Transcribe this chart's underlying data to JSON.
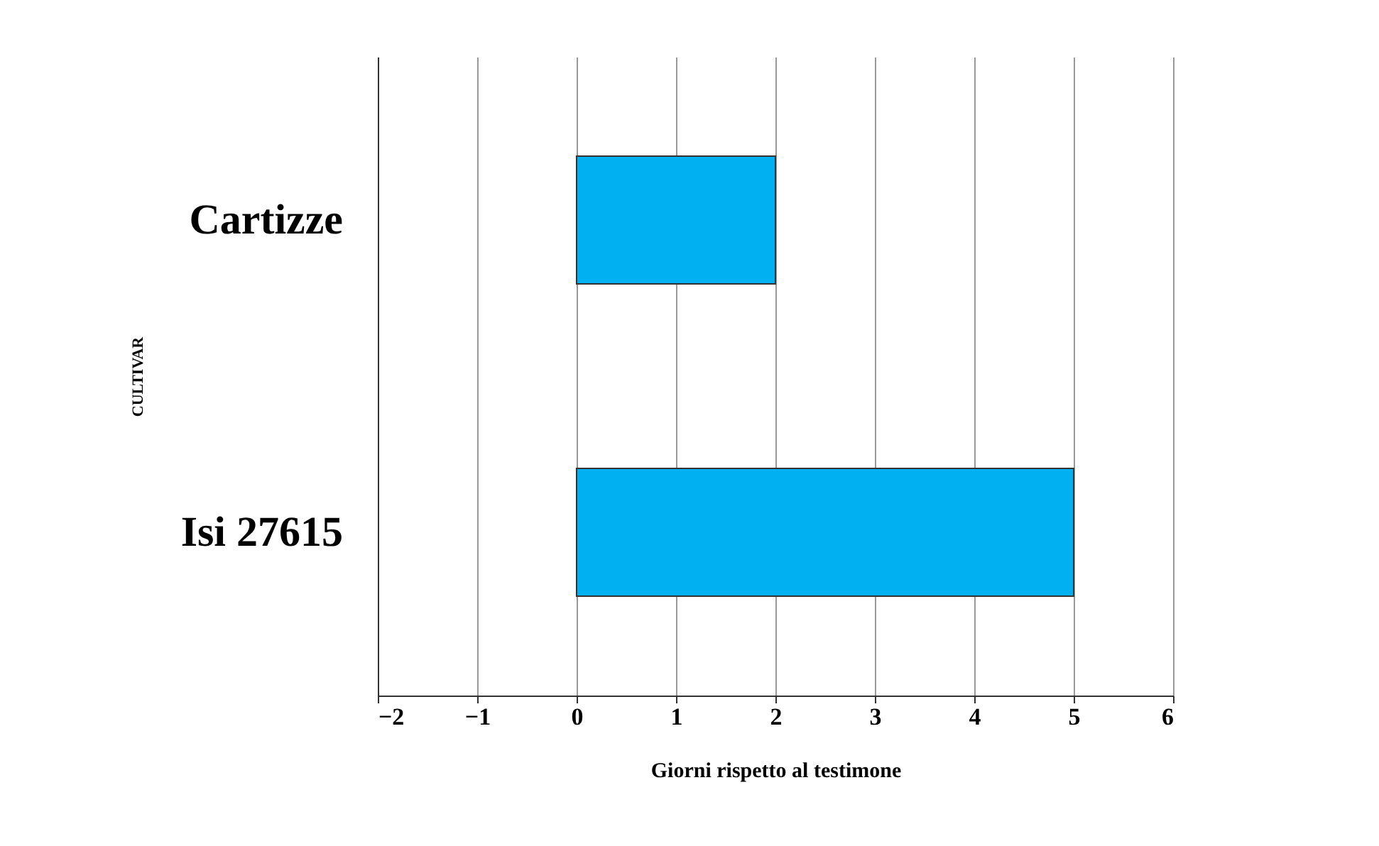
{
  "chart_data": {
    "type": "bar",
    "orientation": "horizontal",
    "xlabel": "Giorni rispetto al testimone",
    "ylabel": "CULTIVAR",
    "categories": [
      "Cartizze",
      "Isi 27615"
    ],
    "series": [
      {
        "color": "#00b0f0",
        "values": [
          2,
          5
        ]
      }
    ],
    "xlim": [
      -2,
      6
    ],
    "xticks": [
      -2,
      -1,
      0,
      1,
      2,
      3,
      4,
      5,
      6
    ],
    "grid": "x"
  }
}
